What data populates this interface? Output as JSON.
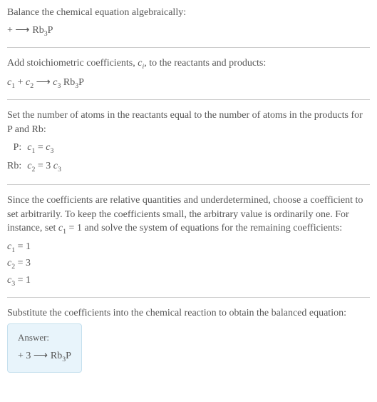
{
  "section1": {
    "title": "Balance the chemical equation algebraically:",
    "eq_left": " + ",
    "eq_arrow": " ⟶ ",
    "eq_product": "Rb",
    "eq_sub1": "3",
    "eq_product2": "P"
  },
  "section2": {
    "title_part1": "Add stoichiometric coefficients, ",
    "title_ci_c": "c",
    "title_ci_i": "i",
    "title_part2": ", to the reactants and products:",
    "c1_c": "c",
    "c1_1": "1",
    "sp1": "  + ",
    "c2_c": "c",
    "c2_1": "2",
    "sp2": "   ",
    "arrow": "⟶",
    "sp3": " ",
    "c3_c": "c",
    "c3_1": "3",
    "sp4": " ",
    "prod": "Rb",
    "prod_sub": "3",
    "prod2": "P"
  },
  "section3": {
    "title": "Set the number of atoms in the reactants equal to the number of atoms in the products for P and Rb:",
    "row1_label": "P:",
    "row1_c1c": "c",
    "row1_c1s": "1",
    "row1_eq": " = ",
    "row1_c3c": "c",
    "row1_c3s": "3",
    "row2_label": "Rb:",
    "row2_c2c": "c",
    "row2_c2s": "2",
    "row2_eq": " = 3 ",
    "row2_c3c": "c",
    "row2_c3s": "3"
  },
  "section4": {
    "title_part1": "Since the coefficients are relative quantities and underdetermined, choose a coefficient to set arbitrarily. To keep the coefficients small, the arbitrary value is ordinarily one. For instance, set ",
    "c1c": "c",
    "c1s": "1",
    "eq1": " = 1",
    "title_part2": " and solve the system of equations for the remaining coefficients:",
    "l1_c": "c",
    "l1_s": "1",
    "l1_v": " = 1",
    "l2_c": "c",
    "l2_s": "2",
    "l2_v": " = 3",
    "l3_c": "c",
    "l3_s": "3",
    "l3_v": " = 1"
  },
  "section5": {
    "title": "Substitute the coefficients into the chemical reaction to obtain the balanced equation:"
  },
  "answer": {
    "label": "Answer:",
    "eq_left": " + 3 ",
    "arrow": " ⟶ ",
    "prod": "Rb",
    "prod_sub": "3",
    "prod2": "P"
  },
  "colors": {
    "text": "#555555",
    "divider": "#cccccc",
    "answer_bg": "#e8f4fb",
    "answer_border": "#c5e0ee"
  }
}
